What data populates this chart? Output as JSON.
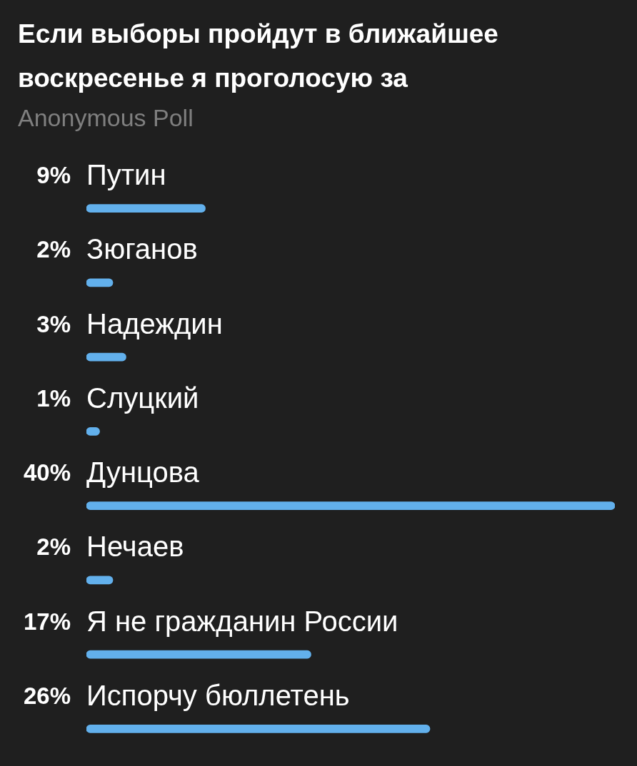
{
  "chart_data": {
    "type": "bar",
    "orientation": "horizontal",
    "title": "Если выборы пройдут в ближайшее воскресенье я проголосую за",
    "subtitle": "Anonymous Poll",
    "categories": [
      "Путин",
      "Зюганов",
      "Надеждин",
      "Слуцкий",
      "Дунцова",
      "Нечаев",
      "Я не гражданин России",
      "Испорчу бюллетень"
    ],
    "values": [
      9,
      2,
      3,
      1,
      40,
      2,
      17,
      26
    ],
    "value_labels": [
      "9%",
      "2%",
      "3%",
      "1%",
      "40%",
      "2%",
      "17%",
      "26%"
    ],
    "color": "#62b0ec",
    "grid": false,
    "legend": false,
    "tick_labels": "y"
  }
}
